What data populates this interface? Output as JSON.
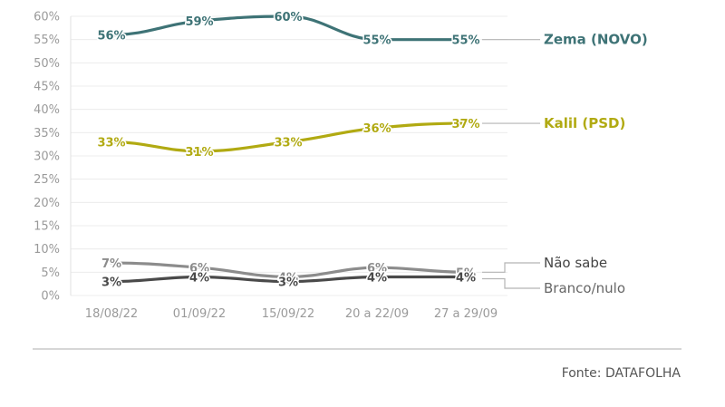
{
  "chart_data": {
    "type": "line",
    "categories": [
      "18/08/22",
      "01/09/22",
      "15/09/22",
      "20 a 22/09",
      "27 a 29/09"
    ],
    "ylim": [
      0,
      60
    ],
    "yticks": [
      "0%",
      "5%",
      "10%",
      "15%",
      "20%",
      "25%",
      "30%",
      "35%",
      "40%",
      "45%",
      "50%",
      "55%",
      "60%"
    ],
    "grid": true,
    "series": [
      {
        "name": "Zema (NOVO)",
        "color": "#3e7376",
        "values": [
          56,
          59,
          60,
          55,
          55
        ],
        "labels": [
          "56%",
          "59%",
          "60%",
          "55%",
          "55%"
        ],
        "label_y": 55
      },
      {
        "name": "Kalil (PSD)",
        "color": "#b1aa12",
        "values": [
          33,
          31,
          33,
          36,
          37
        ],
        "labels": [
          "33%",
          "31%",
          "33%",
          "36%",
          "37%"
        ],
        "label_y": 37
      },
      {
        "name": "Não sabe",
        "color": "#8c8c8c",
        "values": [
          7,
          6,
          4,
          6,
          5
        ],
        "labels": [
          "7%",
          "6%",
          "4%",
          "6%",
          "5%"
        ],
        "label_y": 7.2
      },
      {
        "name": "Branco/nulo",
        "color": "#4a4a4a",
        "values": [
          3,
          4,
          3,
          4,
          4
        ],
        "labels": [
          "3%",
          "4%",
          "3%",
          "4%",
          "4%"
        ],
        "label_y": 1.5
      }
    ]
  },
  "source": "Fonte: DATAFOLHA"
}
